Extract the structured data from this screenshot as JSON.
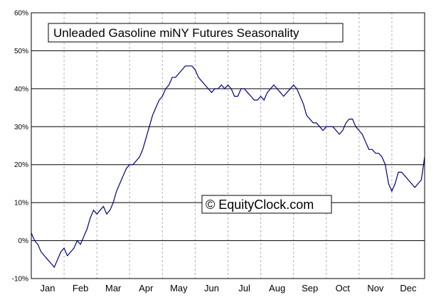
{
  "chart_data": {
    "type": "line",
    "title": "Unleaded Gasoline miNY Futures Seasonality",
    "watermark": "© EquityClock.com",
    "xlabel": "",
    "ylabel": "",
    "ylim": [
      -10,
      60
    ],
    "yticks": [
      "-10%",
      "0%",
      "10%",
      "20%",
      "30%",
      "40%",
      "50%",
      "60%"
    ],
    "ytick_values": [
      -10,
      0,
      10,
      20,
      30,
      40,
      50,
      60
    ],
    "months": [
      "Jan",
      "Feb",
      "Mar",
      "Apr",
      "May",
      "Jun",
      "Jul",
      "Aug",
      "Sep",
      "Oct",
      "Nov",
      "Dec"
    ],
    "grid": {
      "horizontal": true,
      "vertical": "dashed"
    },
    "colors": {
      "line": "#000080",
      "grid": "#000000",
      "vgrid": "#b0b0b0",
      "axis": "#000000"
    },
    "series": [
      {
        "x": [
          0,
          0.1,
          0.2,
          0.3,
          0.4,
          0.5,
          0.6,
          0.7,
          0.8,
          0.9,
          1.0,
          1.1,
          1.2,
          1.3,
          1.4,
          1.5,
          1.6,
          1.7,
          1.8,
          1.9,
          2.0,
          2.1,
          2.2,
          2.3,
          2.4,
          2.5,
          2.6,
          2.7,
          2.8,
          2.9,
          3.0,
          3.1,
          3.2,
          3.3,
          3.4,
          3.5,
          3.6,
          3.7,
          3.8,
          3.9,
          4.0,
          4.1,
          4.2,
          4.3,
          4.4,
          4.5,
          4.6,
          4.7,
          4.8,
          4.9,
          5.0,
          5.1,
          5.2,
          5.3,
          5.4,
          5.5,
          5.6,
          5.7,
          5.8,
          5.9,
          6.0,
          6.1,
          6.2,
          6.3,
          6.4,
          6.5,
          6.6,
          6.7,
          6.8,
          6.9,
          7.0,
          7.1,
          7.2,
          7.3,
          7.4,
          7.5,
          7.6,
          7.7,
          7.8,
          7.9,
          8.0,
          8.1,
          8.2,
          8.3,
          8.4,
          8.5,
          8.6,
          8.7,
          8.8,
          8.9,
          9.0,
          9.1,
          9.2,
          9.3,
          9.4,
          9.5,
          9.6,
          9.7,
          9.8,
          9.9,
          10.0,
          10.1,
          10.2,
          10.3,
          10.4,
          10.5,
          10.6,
          10.7,
          10.8,
          10.9,
          11.0,
          11.1,
          11.2,
          11.3,
          11.4,
          11.5,
          11.6,
          11.7,
          11.8,
          11.9,
          12.0
        ],
        "y": [
          2,
          0,
          -1,
          -3,
          -4,
          -5,
          -6,
          -7,
          -5,
          -3,
          -2,
          -4,
          -3,
          -2,
          0,
          -1,
          1,
          3,
          6,
          8,
          7,
          8,
          9,
          7,
          8,
          10,
          13,
          15,
          17,
          19,
          20,
          20,
          21,
          22,
          24,
          27,
          30,
          33,
          35,
          37,
          38,
          40,
          41,
          43,
          43,
          44,
          45,
          46,
          46,
          46,
          45,
          43,
          42,
          41,
          40,
          39,
          40,
          40,
          41,
          40,
          41,
          40,
          38,
          38,
          40,
          40,
          39,
          38,
          37,
          37,
          38,
          37,
          39,
          40,
          41,
          40,
          39,
          38,
          39,
          40,
          41,
          40,
          38,
          36,
          33,
          32,
          31,
          31,
          30,
          29,
          30,
          30,
          30,
          29,
          28,
          29,
          31,
          32,
          32,
          30,
          29,
          28,
          26,
          24,
          24,
          23,
          23,
          22,
          20,
          15,
          13,
          15,
          18,
          18,
          17,
          16,
          15,
          14,
          15,
          16,
          22
        ]
      }
    ]
  }
}
